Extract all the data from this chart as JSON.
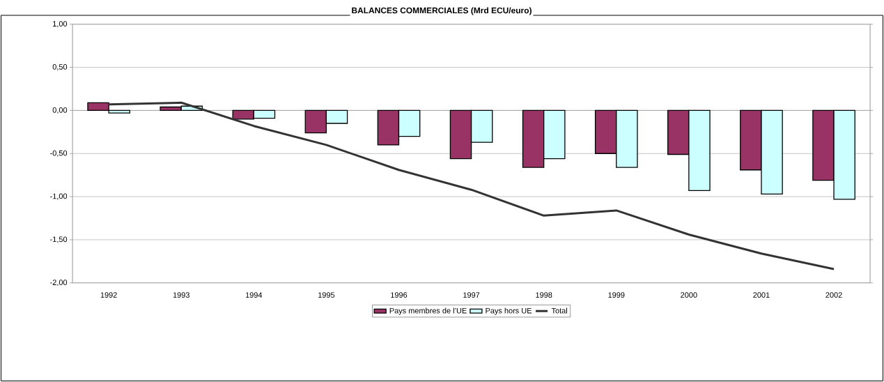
{
  "chart_data": {
    "type": "bar",
    "title": "BALANCES COMMERCIALES (Mrd ECU/euro)",
    "categories": [
      "1992",
      "1993",
      "1994",
      "1995",
      "1996",
      "1997",
      "1998",
      "1999",
      "2000",
      "2001",
      "2002"
    ],
    "series": [
      {
        "name": "Pays membres de l’UE",
        "color": "#993366",
        "values": [
          0.09,
          0.04,
          -0.1,
          -0.26,
          -0.4,
          -0.56,
          -0.66,
          -0.5,
          -0.51,
          -0.69,
          -0.81
        ]
      },
      {
        "name": "Pays hors UE",
        "color": "#ccffff",
        "values": [
          -0.03,
          0.05,
          -0.09,
          -0.15,
          -0.3,
          -0.37,
          -0.56,
          -0.66,
          -0.93,
          -0.97,
          -1.03
        ]
      },
      {
        "name": "Total",
        "type": "line",
        "color": "#333333",
        "values": [
          0.07,
          0.09,
          -0.18,
          -0.4,
          -0.69,
          -0.92,
          -1.22,
          -1.16,
          -1.44,
          -1.66,
          -1.84
        ]
      }
    ],
    "ylim": [
      -2,
      1
    ],
    "yticks": [
      {
        "value": -2,
        "label": "-2,00"
      },
      {
        "value": -1.5,
        "label": "-1,50"
      },
      {
        "value": -1,
        "label": "-1,00"
      },
      {
        "value": -0.5,
        "label": "-0,50"
      },
      {
        "value": 0,
        "label": "0,00"
      },
      {
        "value": 0.5,
        "label": "0,50"
      },
      {
        "value": 1,
        "label": "1,00"
      }
    ],
    "grid": "y",
    "legend": "bottom",
    "marker": "none"
  }
}
